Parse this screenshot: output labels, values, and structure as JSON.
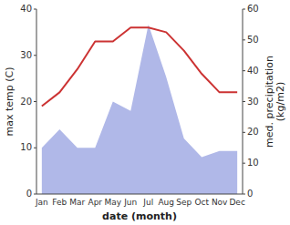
{
  "chart_data": {
    "type": "line",
    "categories": [
      "Jan",
      "Feb",
      "Mar",
      "Apr",
      "May",
      "Jun",
      "Jul",
      "Aug",
      "Sep",
      "Oct",
      "Nov",
      "Dec"
    ],
    "series": [
      {
        "type": "area",
        "color": "#b0b8e8",
        "axis": "y2",
        "values": [
          15,
          21,
          15,
          15,
          30,
          27,
          55,
          38,
          18,
          12,
          14,
          14
        ]
      },
      {
        "type": "line",
        "color": "#cc3333",
        "axis": "y",
        "values": [
          19,
          22,
          27,
          33,
          33,
          36,
          36,
          35,
          31,
          26,
          22,
          22
        ]
      }
    ],
    "x_label": "date (month)",
    "y_label": "max temp (C)",
    "y2_label": "med. precipitation\n(kg/m2)",
    "ylim": [
      0,
      40
    ],
    "yticks": [
      0,
      10,
      20,
      30,
      40
    ],
    "y2lim": [
      0,
      60
    ],
    "y2ticks": [
      0,
      10,
      20,
      30,
      40,
      50,
      60
    ],
    "grid": false
  }
}
